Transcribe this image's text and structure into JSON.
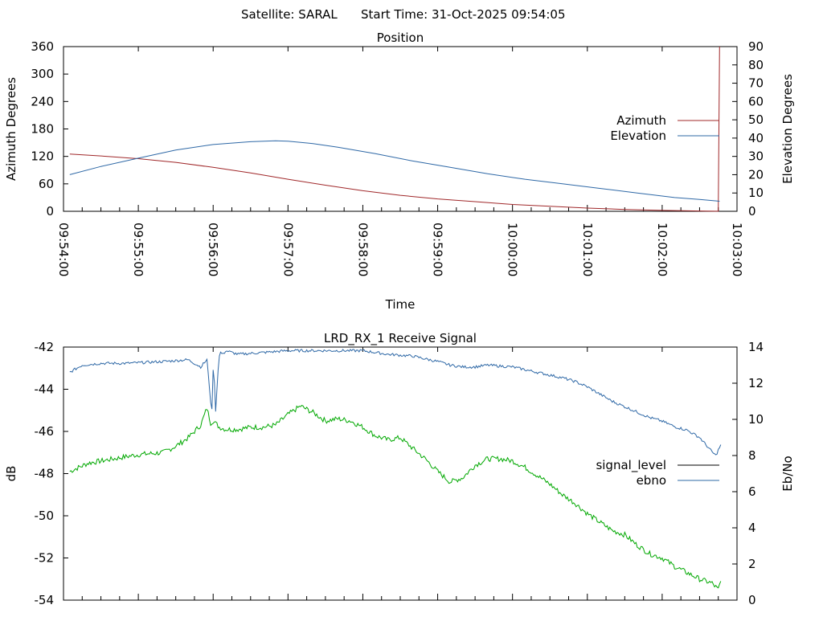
{
  "header": {
    "satellite": "Satellite: SARAL",
    "start_time": "Start Time: 31-Oct-2025 09:54:05"
  },
  "colors": {
    "azimuth": "#a0282a",
    "elevation": "#2e68a6",
    "signal_level": "#000000",
    "ebno": "#2e68a6",
    "green_trace": "#00a800"
  },
  "chart_data": [
    {
      "type": "line",
      "title": "Position",
      "xlabel": "Time",
      "ylabel": "Azimuth Degrees",
      "y2label": "Elevation Degrees",
      "xlim": [
        0,
        540
      ],
      "ylim": [
        0,
        360
      ],
      "y2lim": [
        0,
        90
      ],
      "x_ticks": [
        "09:54:00",
        "09:55:00",
        "09:56:00",
        "09:57:00",
        "09:58:00",
        "09:59:00",
        "10:00:00",
        "10:01:00",
        "10:02:00",
        "10:03:00"
      ],
      "y_ticks": [
        0,
        60,
        120,
        180,
        240,
        300,
        360
      ],
      "y2_ticks": [
        0,
        10,
        20,
        30,
        40,
        50,
        60,
        70,
        80,
        90
      ],
      "legend_position": "right",
      "series": [
        {
          "name": "Azimuth",
          "axis": "y",
          "x": [
            5,
            30,
            60,
            90,
            120,
            150,
            180,
            210,
            240,
            270,
            300,
            330,
            360,
            390,
            420,
            450,
            480,
            500,
            515,
            525,
            525.5,
            526
          ],
          "values": [
            125,
            121,
            115,
            107,
            96,
            84,
            70,
            57,
            45,
            35,
            27,
            21,
            15,
            11,
            7,
            4,
            2,
            1,
            0.5,
            0.2,
            180,
            360
          ]
        },
        {
          "name": "Elevation",
          "axis": "y2",
          "x": [
            5,
            30,
            60,
            90,
            120,
            150,
            170,
            180,
            200,
            220,
            250,
            280,
            310,
            340,
            370,
            400,
            430,
            460,
            490,
            510,
            526
          ],
          "values": [
            20,
            24.5,
            29,
            33.5,
            36.5,
            38,
            38.5,
            38.3,
            37,
            35,
            31.5,
            27.5,
            24,
            20.5,
            17.5,
            15,
            12.5,
            10,
            7.5,
            6.5,
            5.5
          ]
        }
      ]
    },
    {
      "type": "line",
      "title": "LRD_RX_1 Receive Signal",
      "ylabel": "dB",
      "y2label": "Eb/No",
      "xlim": [
        0,
        540
      ],
      "ylim": [
        -54,
        -42
      ],
      "y2lim": [
        0,
        14
      ],
      "y_ticks": [
        -42,
        -44,
        -46,
        -48,
        -50,
        -52,
        -54
      ],
      "y2_ticks": [
        0,
        2,
        4,
        6,
        8,
        10,
        12,
        14
      ],
      "legend_position": "right",
      "series": [
        {
          "name": "signal_level",
          "axis": "y",
          "x": [
            5,
            20,
            40,
            60,
            80,
            90,
            100,
            110,
            115,
            118,
            120,
            125,
            130,
            140,
            150,
            160,
            170,
            180,
            190,
            200,
            210,
            220,
            230,
            240,
            250,
            260,
            270,
            280,
            290,
            300,
            310,
            320,
            330,
            340,
            350,
            360,
            370,
            380,
            390,
            400,
            410,
            420,
            430,
            440,
            450,
            460,
            470,
            480,
            490,
            500,
            510,
            520,
            525,
            527
          ],
          "values": [
            -47.9,
            -47.5,
            -47.3,
            -47.1,
            -47.0,
            -46.7,
            -46.3,
            -45.7,
            -44.9,
            -45.6,
            -45.5,
            -45.8,
            -45.9,
            -45.9,
            -45.8,
            -45.8,
            -45.7,
            -45.2,
            -44.8,
            -45.1,
            -45.5,
            -45.4,
            -45.5,
            -45.8,
            -46.2,
            -46.4,
            -46.3,
            -46.8,
            -47.3,
            -47.9,
            -48.4,
            -48.2,
            -47.6,
            -47.3,
            -47.3,
            -47.4,
            -47.7,
            -48.1,
            -48.5,
            -49.0,
            -49.4,
            -49.9,
            -50.3,
            -50.7,
            -50.9,
            -51.4,
            -51.8,
            -52.0,
            -52.4,
            -52.7,
            -53.0,
            -53.2,
            -53.5,
            -53.1
          ]
        },
        {
          "name": "ebno",
          "axis": "y2",
          "x": [
            5,
            10,
            15,
            30,
            50,
            80,
            100,
            110,
            115,
            118,
            119,
            120,
            121,
            122,
            124,
            125,
            126,
            128,
            130,
            140,
            160,
            180,
            200,
            220,
            240,
            260,
            280,
            300,
            310,
            320,
            330,
            340,
            360,
            380,
            400,
            410,
            420,
            430,
            440,
            450,
            460,
            470,
            480,
            490,
            500,
            505,
            510,
            515,
            520,
            523,
            525,
            527
          ],
          "values": [
            12.6,
            12.8,
            13.0,
            13.1,
            13.1,
            13.2,
            13.3,
            12.9,
            13.3,
            11.0,
            10.5,
            12.8,
            12.0,
            10.5,
            12.8,
            13.5,
            13.7,
            13.6,
            13.8,
            13.6,
            13.7,
            13.8,
            13.8,
            13.8,
            13.8,
            13.6,
            13.5,
            13.2,
            13.0,
            12.9,
            12.9,
            13.0,
            12.9,
            12.6,
            12.3,
            12.1,
            11.8,
            11.4,
            11.0,
            10.7,
            10.4,
            10.1,
            9.9,
            9.6,
            9.4,
            9.2,
            9.0,
            8.6,
            8.2,
            8.0,
            8.3,
            8.6
          ]
        }
      ]
    }
  ]
}
